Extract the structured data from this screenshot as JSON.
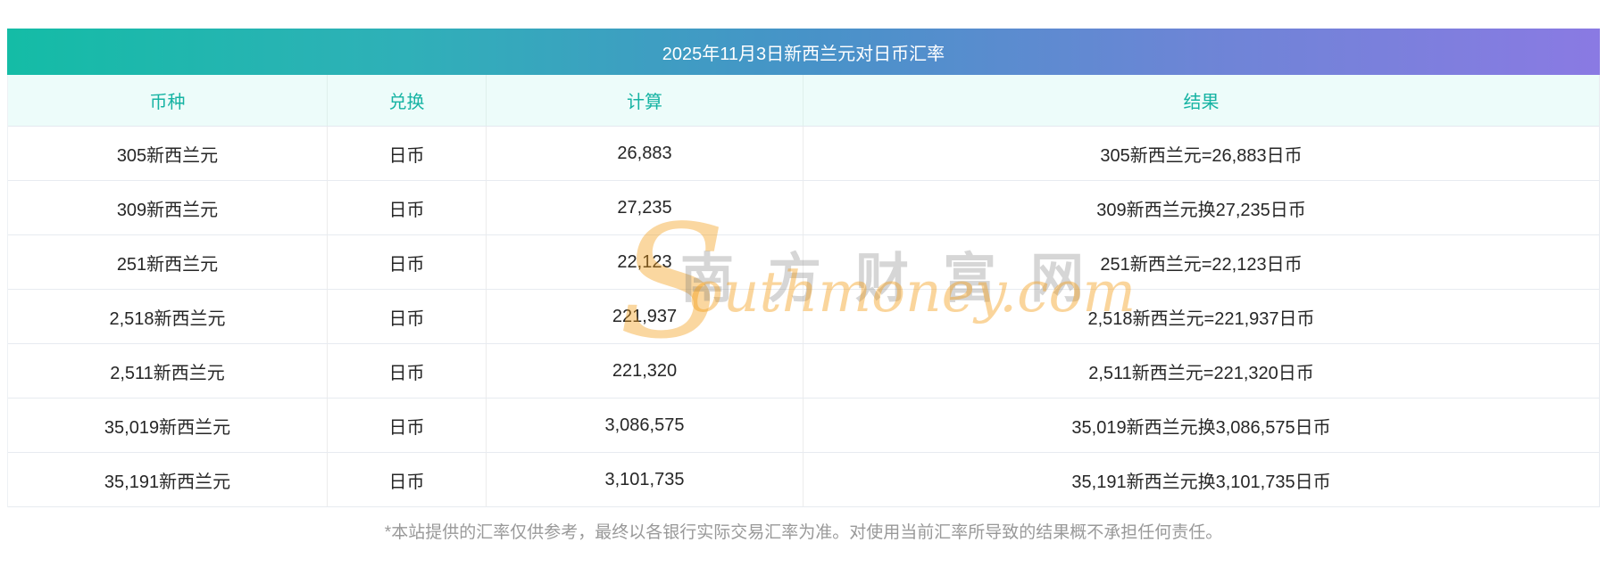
{
  "header": {
    "title": "2025年11月3日新西兰元对日币汇率"
  },
  "table": {
    "columns": [
      "币种",
      "兑换",
      "计算",
      "结果"
    ],
    "rows": [
      {
        "currency": "305新西兰元",
        "exchange": "日币",
        "calc": "26,883",
        "result": "305新西兰元=26,883日币"
      },
      {
        "currency": "309新西兰元",
        "exchange": "日币",
        "calc": "27,235",
        "result": "309新西兰元换27,235日币"
      },
      {
        "currency": "251新西兰元",
        "exchange": "日币",
        "calc": "22,123",
        "result": "251新西兰元=22,123日币"
      },
      {
        "currency": "2,518新西兰元",
        "exchange": "日币",
        "calc": "221,937",
        "result": "2,518新西兰元=221,937日币"
      },
      {
        "currency": "2,511新西兰元",
        "exchange": "日币",
        "calc": "221,320",
        "result": "2,511新西兰元=221,320日币"
      },
      {
        "currency": "35,019新西兰元",
        "exchange": "日币",
        "calc": "3,086,575",
        "result": "35,019新西兰元换3,086,575日币"
      },
      {
        "currency": "35,191新西兰元",
        "exchange": "日币",
        "calc": "3,101,735",
        "result": "35,191新西兰元换3,101,735日币"
      }
    ]
  },
  "footer": {
    "disclaimer": "*本站提供的汇率仅供参考，最终以各银行实际交易汇率为准。对使用当前汇率所导致的结果概不承担任何责任。"
  },
  "watermark": {
    "cn": "南方财富网",
    "en_initial": "S",
    "en_rest": "outhmoney.com"
  },
  "colors": {
    "gradient_start": "#14bca6",
    "gradient_mid": "#4793c8",
    "gradient_end": "#8a7ae3",
    "header_row_bg": "#edfcfa",
    "header_row_text": "#16b3a3",
    "body_text": "#262626",
    "row_border": "#e7ebf0",
    "footer_text": "#999999",
    "watermark_orange": "#f39c12",
    "watermark_gray": "#787878"
  }
}
